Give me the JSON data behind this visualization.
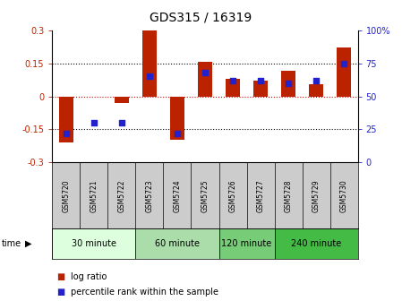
{
  "title": "GDS315 / 16319",
  "samples": [
    "GSM5720",
    "GSM5721",
    "GSM5722",
    "GSM5723",
    "GSM5724",
    "GSM5725",
    "GSM5726",
    "GSM5727",
    "GSM5728",
    "GSM5729",
    "GSM5730"
  ],
  "log_ratio": [
    -0.21,
    0.0,
    -0.03,
    0.3,
    -0.195,
    0.155,
    0.08,
    0.07,
    0.115,
    0.055,
    0.22
  ],
  "percentile": [
    22,
    30,
    30,
    65,
    22,
    68,
    62,
    62,
    60,
    62,
    75
  ],
  "ylim_left": [
    -0.3,
    0.3
  ],
  "ylim_right": [
    0,
    100
  ],
  "yticks_left": [
    -0.3,
    -0.15,
    0,
    0.15,
    0.3
  ],
  "yticks_right": [
    0,
    25,
    50,
    75,
    100
  ],
  "ytick_labels_left": [
    "-0.3",
    "-0.15",
    "0",
    "0.15",
    "0.3"
  ],
  "ytick_labels_right": [
    "0",
    "25",
    "50",
    "75",
    "100%"
  ],
  "hlines_dotted": [
    0.15,
    -0.15
  ],
  "hline_zero_color": "#cc0000",
  "bar_color": "#bb2200",
  "dot_color": "#2222cc",
  "time_groups": [
    {
      "label": "30 minute",
      "start": 0,
      "end": 3,
      "color": "#ddffdd"
    },
    {
      "label": "60 minute",
      "start": 3,
      "end": 6,
      "color": "#aaddaa"
    },
    {
      "label": "120 minute",
      "start": 6,
      "end": 8,
      "color": "#77cc77"
    },
    {
      "label": "240 minute",
      "start": 8,
      "end": 11,
      "color": "#44bb44"
    }
  ],
  "legend_bar_label": "log ratio",
  "legend_dot_label": "percentile rank within the sample",
  "time_label": "time",
  "background_color": "#ffffff",
  "sample_bg_color": "#cccccc"
}
